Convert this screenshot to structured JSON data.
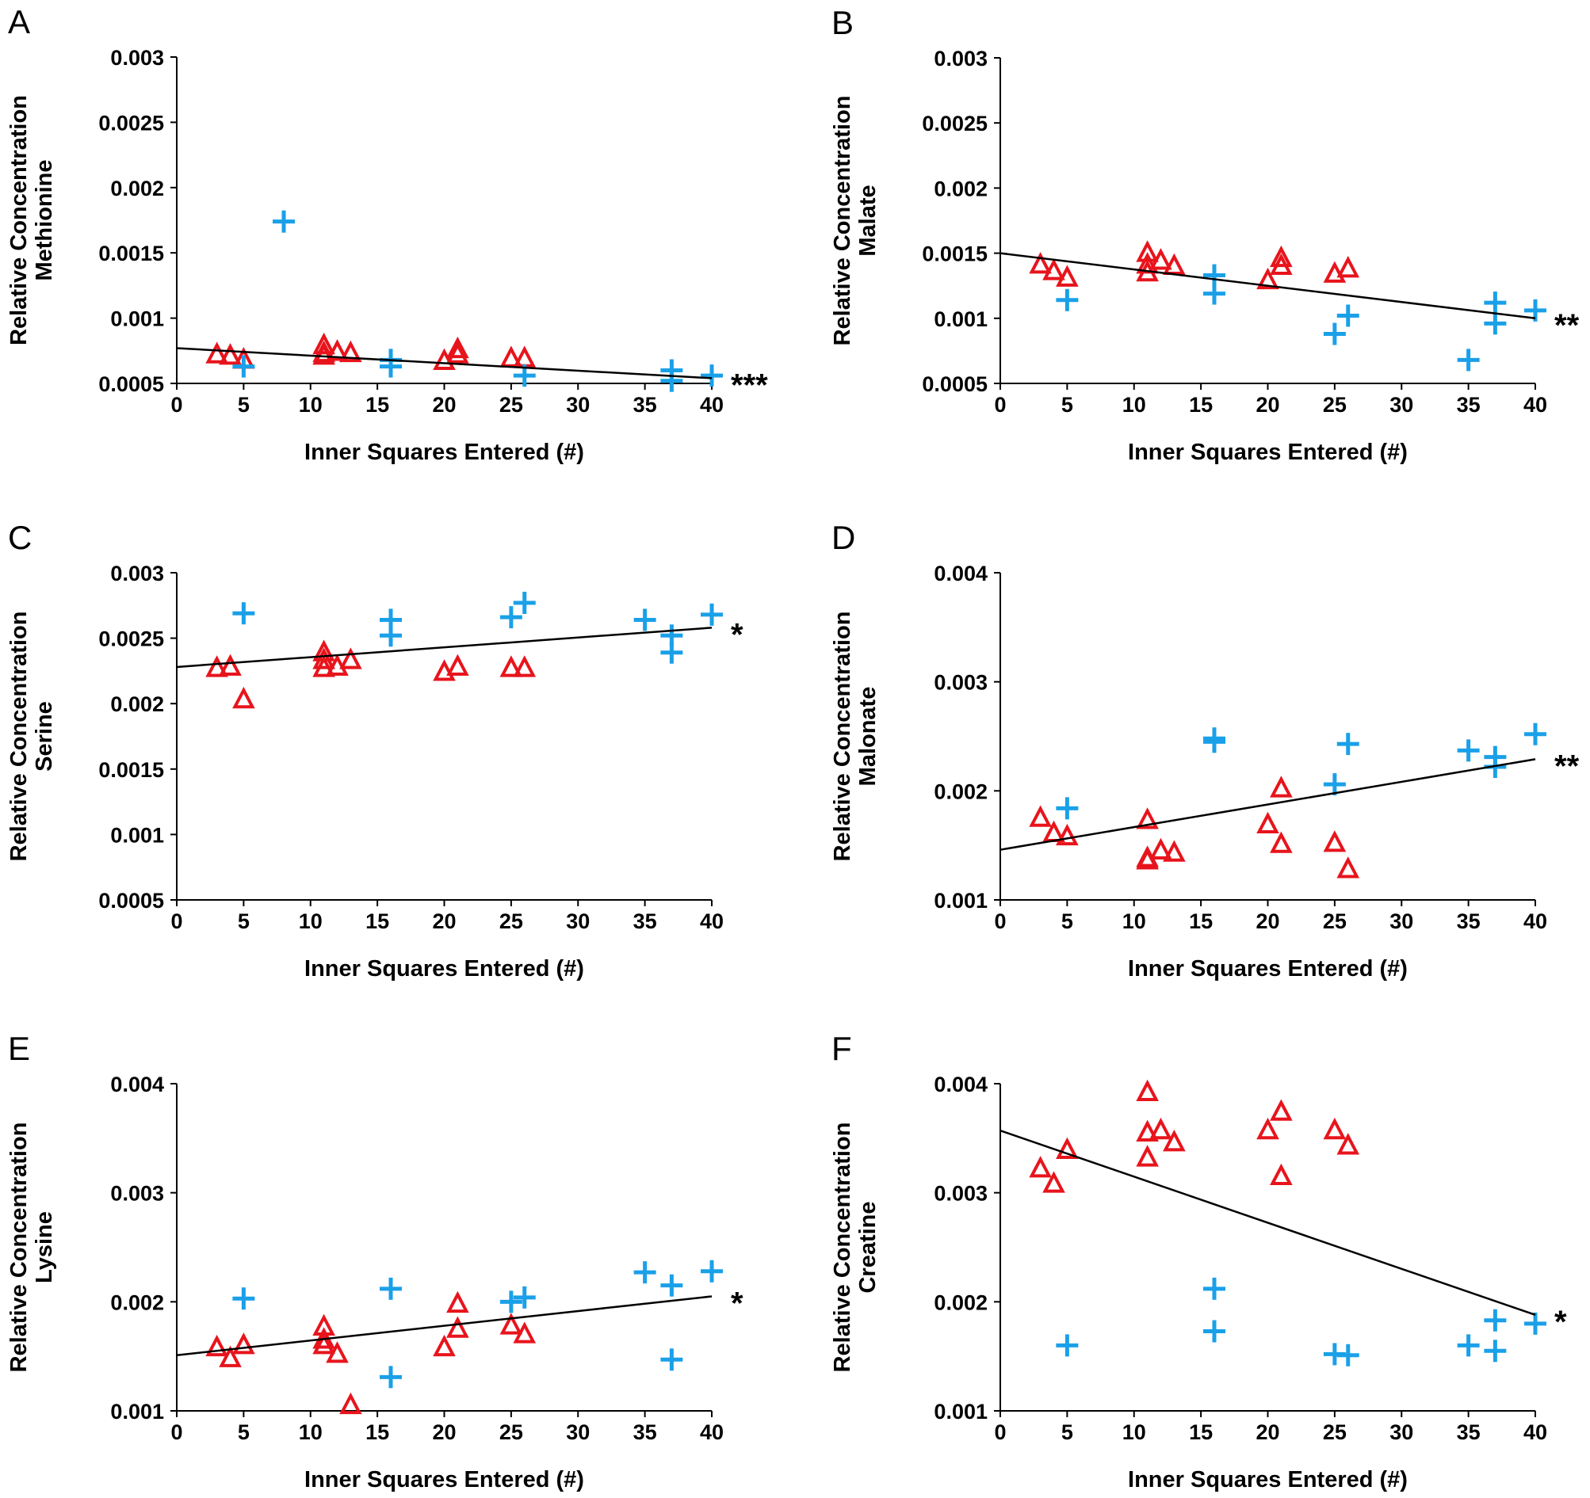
{
  "marker_colors": {
    "triangle": "#e8141c",
    "cross": "#1aa0e8"
  },
  "chart_data": [
    {
      "type": "scatter",
      "panel": "A",
      "xlabel": "Inner Squares Entered (#)",
      "ylabel": [
        "Relative Concentration",
        "Methionine"
      ],
      "xlim": [
        0,
        40
      ],
      "ylim": [
        0.0005,
        0.003
      ],
      "xticks": [
        0,
        5,
        10,
        15,
        20,
        25,
        30,
        35,
        40
      ],
      "yticks": [
        0.0005,
        0.001,
        0.0015,
        0.002,
        0.0025,
        0.003
      ],
      "ytick_labels": [
        "0.0005",
        "0.001",
        "0.0015",
        "0.002",
        "0.0025",
        "0.003"
      ],
      "significance": "***",
      "trendline": {
        "x": [
          0,
          40
        ],
        "y": [
          0.00077,
          0.00054
        ]
      },
      "series": [
        {
          "name": "triangle",
          "marker": "triangle",
          "x": [
            3,
            4,
            5,
            11,
            11,
            11,
            12,
            13,
            20,
            21,
            21,
            25,
            26
          ],
          "y": [
            0.00072,
            0.00071,
            0.00068,
            0.00079,
            0.00073,
            0.00071,
            0.00074,
            0.00073,
            0.00067,
            0.00076,
            0.00072,
            0.00069,
            0.00069
          ]
        },
        {
          "name": "cross",
          "marker": "cross",
          "x": [
            5,
            8,
            16,
            16,
            26,
            37,
            37,
            40
          ],
          "y": [
            0.00063,
            0.00174,
            0.00068,
            0.00063,
            0.00056,
            0.0006,
            0.00052,
            0.00056
          ]
        }
      ]
    },
    {
      "type": "scatter",
      "panel": "B",
      "xlabel": "Inner Squares Entered (#)",
      "ylabel": [
        "Relative Concentration",
        "Malate"
      ],
      "xlim": [
        0,
        40
      ],
      "ylim": [
        0.0005,
        0.003
      ],
      "xticks": [
        0,
        5,
        10,
        15,
        20,
        25,
        30,
        35,
        40
      ],
      "yticks": [
        0.0005,
        0.001,
        0.0015,
        0.002,
        0.0025,
        0.003
      ],
      "ytick_labels": [
        "0.0005",
        "0.001",
        "0.0015",
        "0.002",
        "0.0025",
        "0.003"
      ],
      "significance": "**",
      "trendline": {
        "x": [
          0,
          40
        ],
        "y": [
          0.0015,
          0.001
        ]
      },
      "series": [
        {
          "name": "triangle",
          "marker": "triangle",
          "x": [
            3,
            4,
            5,
            11,
            11,
            11,
            12,
            13,
            20,
            21,
            21,
            25,
            26
          ],
          "y": [
            0.00141,
            0.00136,
            0.00131,
            0.0015,
            0.00141,
            0.00135,
            0.00144,
            0.0014,
            0.00129,
            0.00146,
            0.0014,
            0.00134,
            0.00138
          ]
        },
        {
          "name": "cross",
          "marker": "cross",
          "x": [
            5,
            16,
            16,
            25,
            26,
            35,
            37,
            37,
            40
          ],
          "y": [
            0.00114,
            0.00133,
            0.00119,
            0.00088,
            0.00102,
            0.00068,
            0.00112,
            0.00096,
            0.00106
          ]
        }
      ]
    },
    {
      "type": "scatter",
      "panel": "C",
      "xlabel": "Inner Squares Entered (#)",
      "ylabel": [
        "Relative Concentration",
        "Serine"
      ],
      "xlim": [
        0,
        40
      ],
      "ylim": [
        0.0005,
        0.003
      ],
      "xticks": [
        0,
        5,
        10,
        15,
        20,
        25,
        30,
        35,
        40
      ],
      "yticks": [
        0.0005,
        0.001,
        0.0015,
        0.002,
        0.0025,
        0.003
      ],
      "ytick_labels": [
        "0.0005",
        "0.001",
        "0.0015",
        "0.002",
        "0.0025",
        "0.003"
      ],
      "significance": "*",
      "trendline": {
        "x": [
          0,
          40
        ],
        "y": [
          0.00228,
          0.00258
        ]
      },
      "series": [
        {
          "name": "triangle",
          "marker": "triangle",
          "x": [
            3,
            4,
            5,
            11,
            11,
            11,
            12,
            13,
            20,
            21,
            25,
            26
          ],
          "y": [
            0.00227,
            0.00228,
            0.00203,
            0.00239,
            0.00233,
            0.00227,
            0.00228,
            0.00233,
            0.00224,
            0.00228,
            0.00227,
            0.00227
          ]
        },
        {
          "name": "cross",
          "marker": "cross",
          "x": [
            5,
            16,
            16,
            25,
            26,
            35,
            37,
            37,
            40
          ],
          "y": [
            0.00269,
            0.00264,
            0.00252,
            0.00266,
            0.00277,
            0.00264,
            0.00252,
            0.00239,
            0.00268
          ]
        }
      ]
    },
    {
      "type": "scatter",
      "panel": "D",
      "xlabel": "Inner Squares Entered (#)",
      "ylabel": [
        "Relative Concentration",
        "Malonate"
      ],
      "xlim": [
        0,
        40
      ],
      "ylim": [
        0.001,
        0.004
      ],
      "xticks": [
        0,
        5,
        10,
        15,
        20,
        25,
        30,
        35,
        40
      ],
      "yticks": [
        0.001,
        0.002,
        0.003,
        0.004
      ],
      "ytick_labels": [
        "0.001",
        "0.002",
        "0.003",
        "0.004"
      ],
      "significance": "**",
      "trendline": {
        "x": [
          0,
          40
        ],
        "y": [
          0.00146,
          0.00229
        ]
      },
      "series": [
        {
          "name": "triangle",
          "marker": "triangle",
          "x": [
            3,
            4,
            5,
            11,
            11,
            11,
            12,
            13,
            20,
            21,
            21,
            25,
            26
          ],
          "y": [
            0.00175,
            0.00161,
            0.00158,
            0.00173,
            0.00138,
            0.00136,
            0.00145,
            0.00143,
            0.00169,
            0.00202,
            0.00151,
            0.00152,
            0.00128
          ]
        },
        {
          "name": "cross",
          "marker": "cross",
          "x": [
            5,
            16,
            16,
            25,
            26,
            35,
            37,
            37,
            40
          ],
          "y": [
            0.00184,
            0.00248,
            0.00245,
            0.00206,
            0.00243,
            0.00237,
            0.00231,
            0.00222,
            0.00252
          ]
        }
      ]
    },
    {
      "type": "scatter",
      "panel": "E",
      "xlabel": "Inner Squares Entered (#)",
      "ylabel": [
        "Relative Concentration",
        "Lysine"
      ],
      "xlim": [
        0,
        40
      ],
      "ylim": [
        0.001,
        0.004
      ],
      "xticks": [
        0,
        5,
        10,
        15,
        20,
        25,
        30,
        35,
        40
      ],
      "yticks": [
        0.001,
        0.002,
        0.003,
        0.004
      ],
      "ytick_labels": [
        "0.001",
        "0.002",
        "0.003",
        "0.004"
      ],
      "significance": "*",
      "trendline": {
        "x": [
          0,
          40
        ],
        "y": [
          0.00151,
          0.00205
        ]
      },
      "series": [
        {
          "name": "triangle",
          "marker": "triangle",
          "x": [
            3,
            4,
            5,
            11,
            11,
            11,
            12,
            13,
            20,
            21,
            21,
            25,
            26
          ],
          "y": [
            0.00158,
            0.00148,
            0.0016,
            0.00177,
            0.00165,
            0.0016,
            0.00152,
            0.00105,
            0.00158,
            0.00198,
            0.00175,
            0.00178,
            0.0017
          ]
        },
        {
          "name": "cross",
          "marker": "cross",
          "x": [
            5,
            16,
            16,
            25,
            26,
            35,
            37,
            37,
            40
          ],
          "y": [
            0.00203,
            0.00212,
            0.00131,
            0.002,
            0.00204,
            0.00227,
            0.00215,
            0.00147,
            0.00228
          ]
        }
      ]
    },
    {
      "type": "scatter",
      "panel": "F",
      "xlabel": "Inner Squares Entered (#)",
      "ylabel": [
        "Relative Concentration",
        "Creatine"
      ],
      "xlim": [
        0,
        40
      ],
      "ylim": [
        0.001,
        0.004
      ],
      "xticks": [
        0,
        5,
        10,
        15,
        20,
        25,
        30,
        35,
        40
      ],
      "yticks": [
        0.001,
        0.002,
        0.003,
        0.004
      ],
      "ytick_labels": [
        "0.001",
        "0.002",
        "0.003",
        "0.004"
      ],
      "significance": "*",
      "trendline": {
        "x": [
          0,
          40
        ],
        "y": [
          0.00357,
          0.00188
        ]
      },
      "series": [
        {
          "name": "triangle",
          "marker": "triangle",
          "x": [
            3,
            4,
            5,
            11,
            11,
            11,
            12,
            13,
            20,
            21,
            21,
            25,
            26
          ],
          "y": [
            0.00322,
            0.00308,
            0.00339,
            0.00392,
            0.00355,
            0.00332,
            0.00357,
            0.00346,
            0.00357,
            0.00374,
            0.00315,
            0.00357,
            0.00343
          ]
        },
        {
          "name": "cross",
          "marker": "cross",
          "x": [
            5,
            16,
            16,
            25,
            26,
            35,
            37,
            37,
            40
          ],
          "y": [
            0.0016,
            0.00212,
            0.00173,
            0.00152,
            0.00151,
            0.0016,
            0.00183,
            0.00155,
            0.0018
          ]
        }
      ]
    }
  ]
}
